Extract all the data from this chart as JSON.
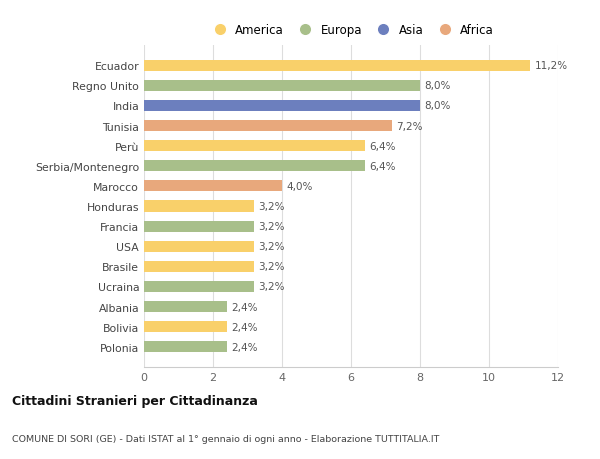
{
  "categories": [
    "Ecuador",
    "Regno Unito",
    "India",
    "Tunisia",
    "Perù",
    "Serbia/Montenegro",
    "Marocco",
    "Honduras",
    "Francia",
    "USA",
    "Brasile",
    "Ucraina",
    "Albania",
    "Bolivia",
    "Polonia"
  ],
  "values": [
    11.2,
    8.0,
    8.0,
    7.2,
    6.4,
    6.4,
    4.0,
    3.2,
    3.2,
    3.2,
    3.2,
    3.2,
    2.4,
    2.4,
    2.4
  ],
  "labels": [
    "11,2%",
    "8,0%",
    "8,0%",
    "7,2%",
    "6,4%",
    "6,4%",
    "4,0%",
    "3,2%",
    "3,2%",
    "3,2%",
    "3,2%",
    "3,2%",
    "2,4%",
    "2,4%",
    "2,4%"
  ],
  "colors": [
    "#f9d06a",
    "#a8bf8a",
    "#6c7fbe",
    "#e8a87c",
    "#f9d06a",
    "#a8bf8a",
    "#e8a87c",
    "#f9d06a",
    "#a8bf8a",
    "#f9d06a",
    "#f9d06a",
    "#a8bf8a",
    "#a8bf8a",
    "#f9d06a",
    "#a8bf8a"
  ],
  "continents": [
    "America",
    "Europa",
    "Asia",
    "Africa"
  ],
  "legend_colors": [
    "#f9d06a",
    "#a8bf8a",
    "#6c7fbe",
    "#e8a87c"
  ],
  "title": "Cittadini Stranieri per Cittadinanza",
  "subtitle": "COMUNE DI SORI (GE) - Dati ISTAT al 1° gennaio di ogni anno - Elaborazione TUTTITALIA.IT",
  "xlim": [
    0,
    12
  ],
  "xticks": [
    0,
    2,
    4,
    6,
    8,
    10,
    12
  ],
  "bar_height": 0.55,
  "background_color": "#ffffff",
  "grid_color": "#dddddd"
}
